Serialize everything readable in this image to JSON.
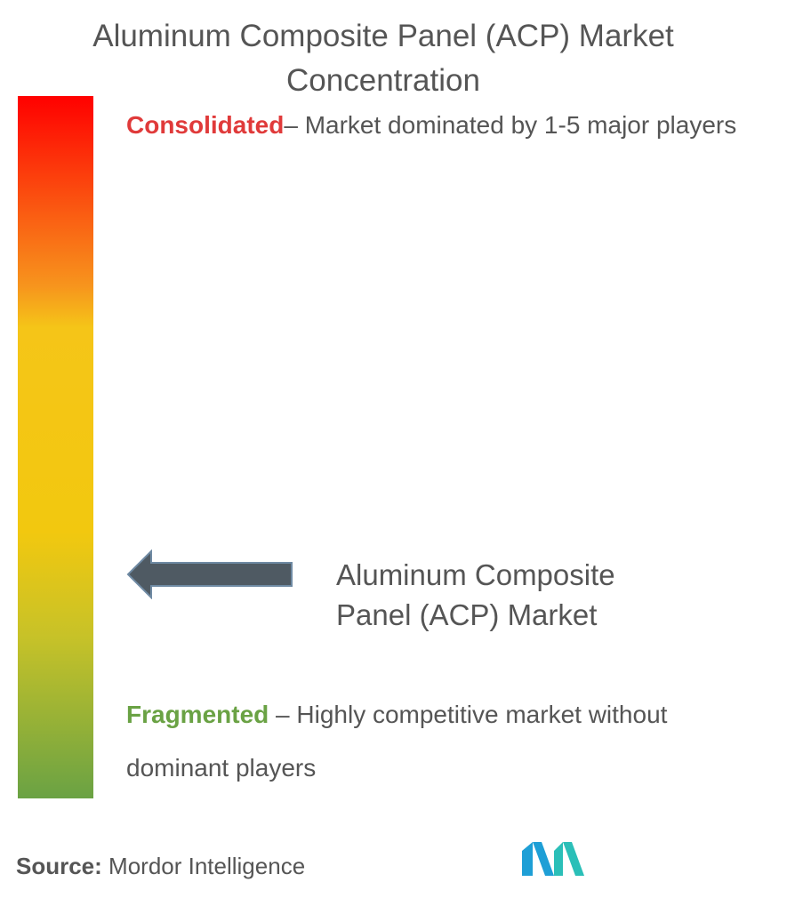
{
  "title": {
    "line1": "Aluminum Composite Panel (ACP) Market",
    "line2": "Concentration"
  },
  "scale": {
    "consolidated": {
      "label": "Consolidated",
      "description": "– Market dominated by 1-5 major players",
      "color": "#e03a3a"
    },
    "fragmented": {
      "label": "Fragmented",
      "description": " – Highly competitive market without dominant players",
      "color": "#6aa244"
    },
    "gradient_colors": [
      "#ff0000",
      "#f7941d",
      "#f2c80f",
      "#6aa244"
    ]
  },
  "marker": {
    "label_line1": "Aluminum Composite",
    "label_line2": "Panel (ACP) Market",
    "position_fraction_from_fragmented": 0.32,
    "arrow_color": "#4f5a63"
  },
  "source": {
    "key": "Source:",
    "value": " Mordor Intelligence"
  },
  "logo": {
    "icon": "mordor-intelligence-logo-icon",
    "colors": [
      "#1e9fd6",
      "#2bbfb8"
    ]
  }
}
